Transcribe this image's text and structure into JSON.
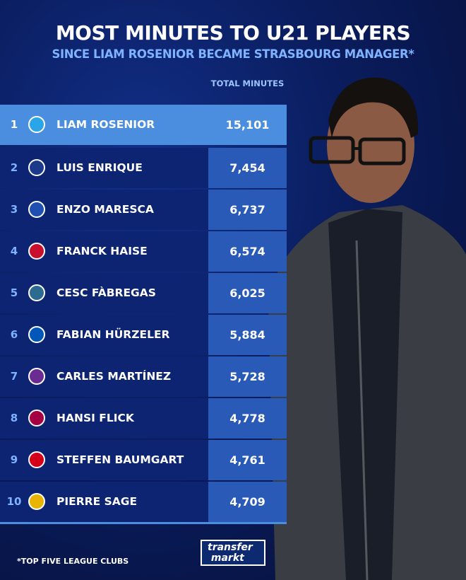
{
  "header": {
    "title": "MOST MINUTES TO U21 PLAYERS",
    "subtitle": "SINCE LIAM ROSENIOR BECAME STRASBOURG MANAGER*"
  },
  "footer": {
    "note": "*TOP FIVE LEAGUE CLUBS",
    "logo": "transfermarkt"
  },
  "colors": {
    "highlight": "#4b8ee0",
    "row": "#0c2472",
    "value_cell": "#2a5ab8",
    "subtitle": "#7fb2ff"
  },
  "chart_data": {
    "type": "table",
    "columns": [
      "",
      "",
      "",
      "TOTAL MINUTES"
    ],
    "column_header": "TOTAL MINUTES",
    "rows": [
      {
        "rank": "1",
        "manager": "LIAM ROSENIOR",
        "club_crest": "strasbourg-crest",
        "minutes": "15,101",
        "color": "#2aa6e8"
      },
      {
        "rank": "2",
        "manager": "LUIS ENRIQUE",
        "club_crest": "psg-crest",
        "minutes": "7,454",
        "color": "#1b3a8c"
      },
      {
        "rank": "3",
        "manager": "ENZO MARESCA",
        "club_crest": "chelsea-crest",
        "minutes": "6,737",
        "color": "#1f4fb0"
      },
      {
        "rank": "4",
        "manager": "FRANCK HAISE",
        "club_crest": "nice-crest",
        "minutes": "6,574",
        "color": "#c8102e"
      },
      {
        "rank": "5",
        "manager": "CESC FÀBREGAS",
        "club_crest": "como-crest",
        "minutes": "6,025",
        "color": "#2d6a8f"
      },
      {
        "rank": "6",
        "manager": "FABIAN HÜRZELER",
        "club_crest": "brighton-crest",
        "minutes": "5,884",
        "color": "#0057b8"
      },
      {
        "rank": "7",
        "manager": "CARLES MARTÍNEZ",
        "club_crest": "toulouse-crest",
        "minutes": "5,728",
        "color": "#6b2c91"
      },
      {
        "rank": "8",
        "manager": "HANSI FLICK",
        "club_crest": "barcelona-crest",
        "minutes": "4,778",
        "color": "#a50044"
      },
      {
        "rank": "9",
        "manager": "STEFFEN BAUMGART",
        "club_crest": "union-berlin-crest",
        "minutes": "4,761",
        "color": "#d4001a"
      },
      {
        "rank": "10",
        "manager": "PIERRE SAGE",
        "club_crest": "lens-crest",
        "minutes": "4,709",
        "color": "#e8b400"
      }
    ]
  }
}
